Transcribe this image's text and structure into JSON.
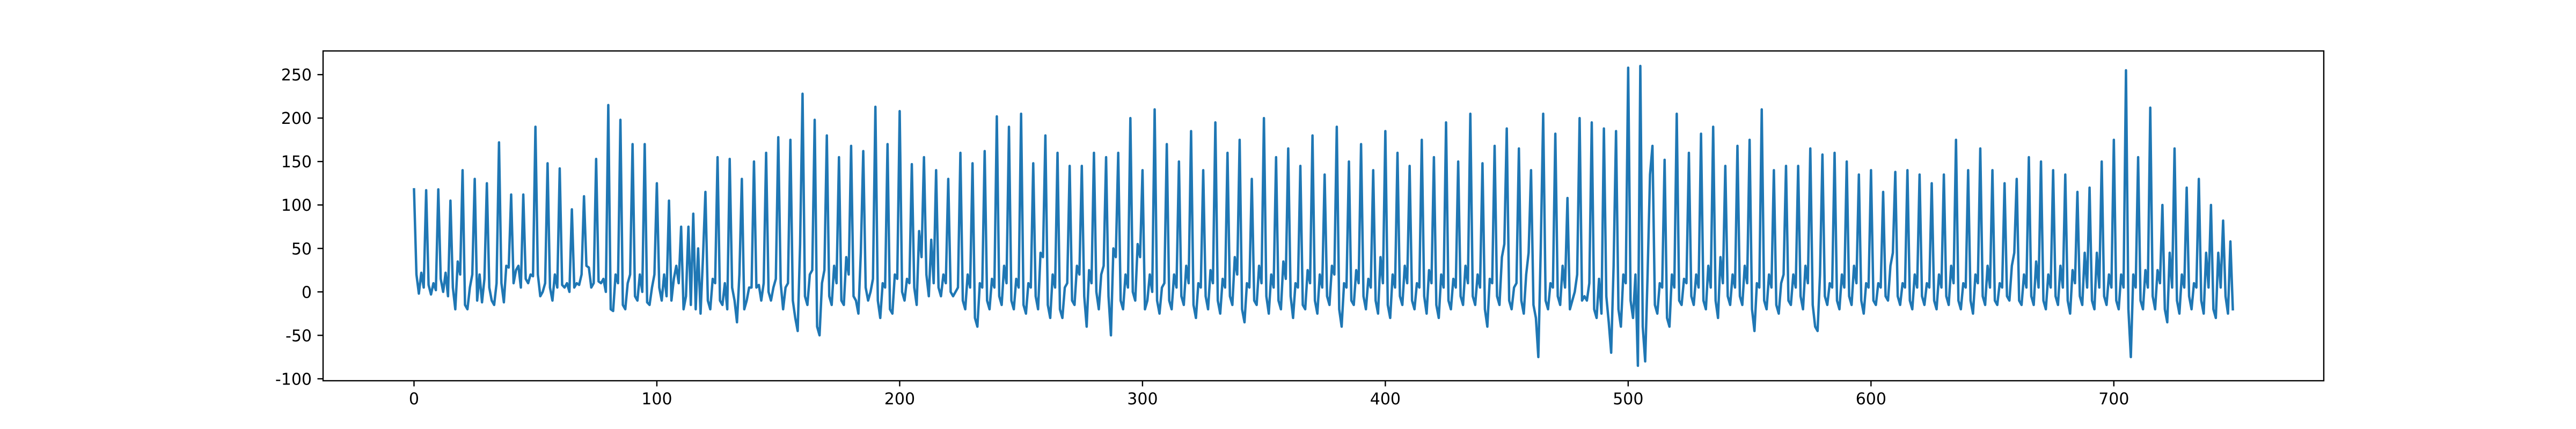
{
  "chart_data": {
    "type": "line",
    "series": [
      {
        "color": "#1f77b4",
        "values": [
          118,
          20,
          -2,
          22,
          5,
          117,
          8,
          -3,
          10,
          2,
          118,
          15,
          0,
          22,
          -5,
          105,
          5,
          -20,
          35,
          20,
          140,
          -15,
          -20,
          5,
          20,
          130,
          -10,
          20,
          -12,
          15,
          125,
          5,
          -10,
          -15,
          10,
          172,
          10,
          -12,
          30,
          28,
          112,
          10,
          25,
          30,
          5,
          112,
          15,
          10,
          20,
          18,
          190,
          20,
          -5,
          0,
          10,
          148,
          5,
          -10,
          20,
          5,
          142,
          8,
          5,
          10,
          0,
          95,
          5,
          10,
          8,
          20,
          110,
          30,
          28,
          5,
          10,
          153,
          12,
          10,
          15,
          0,
          215,
          -20,
          -22,
          20,
          10,
          198,
          -15,
          -20,
          10,
          20,
          170,
          -5,
          -10,
          20,
          0,
          170,
          -12,
          -15,
          5,
          20,
          125,
          5,
          -10,
          20,
          -5,
          105,
          -10,
          15,
          30,
          10,
          75,
          -20,
          -5,
          75,
          -15,
          90,
          -20,
          50,
          -25,
          40,
          115,
          -10,
          -20,
          15,
          10,
          155,
          -10,
          -15,
          10,
          -20,
          153,
          5,
          -10,
          -35,
          20,
          130,
          -20,
          -10,
          5,
          5,
          150,
          5,
          8,
          -10,
          10,
          160,
          0,
          -10,
          5,
          15,
          178,
          10,
          -20,
          5,
          10,
          175,
          -10,
          -30,
          -45,
          55,
          228,
          -5,
          -15,
          20,
          25,
          198,
          -40,
          -50,
          10,
          25,
          180,
          -5,
          -15,
          30,
          10,
          155,
          -10,
          -15,
          40,
          20,
          168,
          -5,
          -10,
          -25,
          45,
          162,
          5,
          -10,
          0,
          15,
          213,
          -10,
          -30,
          10,
          5,
          170,
          -20,
          -25,
          20,
          15,
          208,
          0,
          -10,
          15,
          10,
          147,
          5,
          -15,
          70,
          40,
          155,
          20,
          -5,
          60,
          10,
          140,
          5,
          -5,
          20,
          10,
          130,
          0,
          -5,
          0,
          5,
          160,
          -10,
          -20,
          20,
          5,
          148,
          -30,
          -40,
          10,
          5,
          162,
          -10,
          -20,
          15,
          5,
          202,
          -5,
          -15,
          30,
          10,
          190,
          -10,
          -20,
          15,
          5,
          205,
          -15,
          -25,
          10,
          5,
          148,
          -5,
          -20,
          45,
          40,
          180,
          -15,
          -30,
          20,
          5,
          160,
          -20,
          -30,
          5,
          10,
          145,
          -10,
          -15,
          30,
          20,
          145,
          -5,
          -40,
          25,
          10,
          160,
          0,
          -20,
          20,
          30,
          155,
          -5,
          -50,
          50,
          40,
          160,
          -10,
          -20,
          20,
          5,
          200,
          0,
          -10,
          55,
          40,
          140,
          -20,
          -10,
          20,
          0,
          210,
          -10,
          -25,
          5,
          10,
          170,
          -10,
          -20,
          20,
          5,
          150,
          -5,
          -15,
          30,
          10,
          185,
          -15,
          -30,
          10,
          5,
          140,
          -5,
          -20,
          25,
          10,
          195,
          -10,
          -25,
          15,
          5,
          160,
          -5,
          -15,
          40,
          20,
          175,
          -20,
          -35,
          10,
          5,
          130,
          -10,
          -15,
          30,
          10,
          200,
          -5,
          -25,
          20,
          5,
          155,
          -10,
          -20,
          35,
          15,
          165,
          -5,
          -30,
          10,
          5,
          145,
          -15,
          -20,
          25,
          10,
          180,
          -10,
          -25,
          20,
          5,
          135,
          -5,
          -15,
          30,
          20,
          190,
          -20,
          -40,
          10,
          5,
          150,
          -10,
          -15,
          25,
          10,
          170,
          -5,
          -20,
          15,
          5,
          140,
          -10,
          -25,
          40,
          10,
          185,
          -15,
          -30,
          20,
          5,
          160,
          -5,
          -15,
          30,
          10,
          145,
          -10,
          -20,
          10,
          5,
          175,
          -5,
          -25,
          25,
          10,
          155,
          -15,
          -30,
          20,
          5,
          195,
          -10,
          -20,
          15,
          5,
          150,
          -5,
          -15,
          30,
          10,
          205,
          -5,
          -15,
          20,
          5,
          148,
          -20,
          -40,
          15,
          10,
          168,
          -5,
          -15,
          40,
          55,
          188,
          -10,
          -20,
          5,
          10,
          165,
          -10,
          -25,
          20,
          45,
          140,
          -15,
          -30,
          -75,
          50,
          205,
          -10,
          -20,
          10,
          5,
          182,
          -5,
          -15,
          30,
          5,
          108,
          -20,
          -10,
          0,
          20,
          200,
          -10,
          -5,
          -10,
          10,
          195,
          -20,
          -30,
          15,
          -25,
          188,
          -5,
          -35,
          -70,
          30,
          185,
          -20,
          -40,
          20,
          10,
          258,
          -10,
          -30,
          20,
          -85,
          260,
          -40,
          -80,
          20,
          135,
          168,
          -15,
          -25,
          10,
          5,
          152,
          -30,
          -40,
          20,
          5,
          205,
          -10,
          -15,
          15,
          10,
          160,
          -5,
          -15,
          20,
          5,
          182,
          -10,
          -20,
          30,
          5,
          190,
          -10,
          -30,
          40,
          10,
          145,
          -5,
          -15,
          20,
          5,
          168,
          -5,
          -15,
          30,
          10,
          175,
          -20,
          -45,
          10,
          5,
          210,
          -10,
          -20,
          20,
          5,
          140,
          -15,
          -25,
          10,
          20,
          145,
          -10,
          -15,
          20,
          5,
          145,
          -5,
          -20,
          30,
          10,
          165,
          -15,
          -40,
          -45,
          20,
          158,
          -5,
          -15,
          10,
          5,
          160,
          -10,
          -20,
          20,
          5,
          150,
          -5,
          -15,
          30,
          10,
          135,
          -10,
          -25,
          10,
          5,
          140,
          -10,
          -15,
          10,
          5,
          115,
          -5,
          -10,
          30,
          45,
          138,
          -5,
          -15,
          10,
          5,
          140,
          -10,
          -20,
          20,
          5,
          135,
          -5,
          -15,
          10,
          5,
          125,
          -10,
          -20,
          20,
          5,
          135,
          -5,
          -15,
          30,
          10,
          175,
          -10,
          -20,
          10,
          5,
          140,
          -10,
          -25,
          20,
          10,
          165,
          -5,
          -15,
          30,
          5,
          140,
          -10,
          -15,
          10,
          5,
          125,
          -5,
          -10,
          30,
          45,
          130,
          -10,
          -15,
          20,
          5,
          155,
          -5,
          -15,
          35,
          5,
          150,
          -10,
          -20,
          20,
          5,
          140,
          -5,
          -15,
          30,
          5,
          135,
          -10,
          -25,
          25,
          10,
          115,
          -5,
          -15,
          45,
          5,
          120,
          -10,
          -20,
          45,
          5,
          150,
          -5,
          -15,
          20,
          5,
          175,
          -10,
          -20,
          20,
          5,
          255,
          -20,
          -75,
          20,
          5,
          155,
          -10,
          -20,
          25,
          5,
          212,
          -5,
          -20,
          25,
          10,
          100,
          -20,
          -35,
          45,
          5,
          165,
          -10,
          -25,
          20,
          5,
          120,
          -5,
          -20,
          10,
          5,
          130,
          -10,
          -25,
          45,
          5,
          100,
          -20,
          -30,
          45,
          5,
          82,
          -5,
          -25,
          58,
          -20
        ]
      }
    ],
    "xlim": [
      -37.45,
      786.45
    ],
    "xticks": [
      0,
      100,
      200,
      300,
      400,
      500,
      600,
      700
    ],
    "ylim": [
      -102.25,
      277.25
    ],
    "yticks": [
      -100,
      -50,
      0,
      50,
      100,
      150,
      200,
      250
    ]
  }
}
